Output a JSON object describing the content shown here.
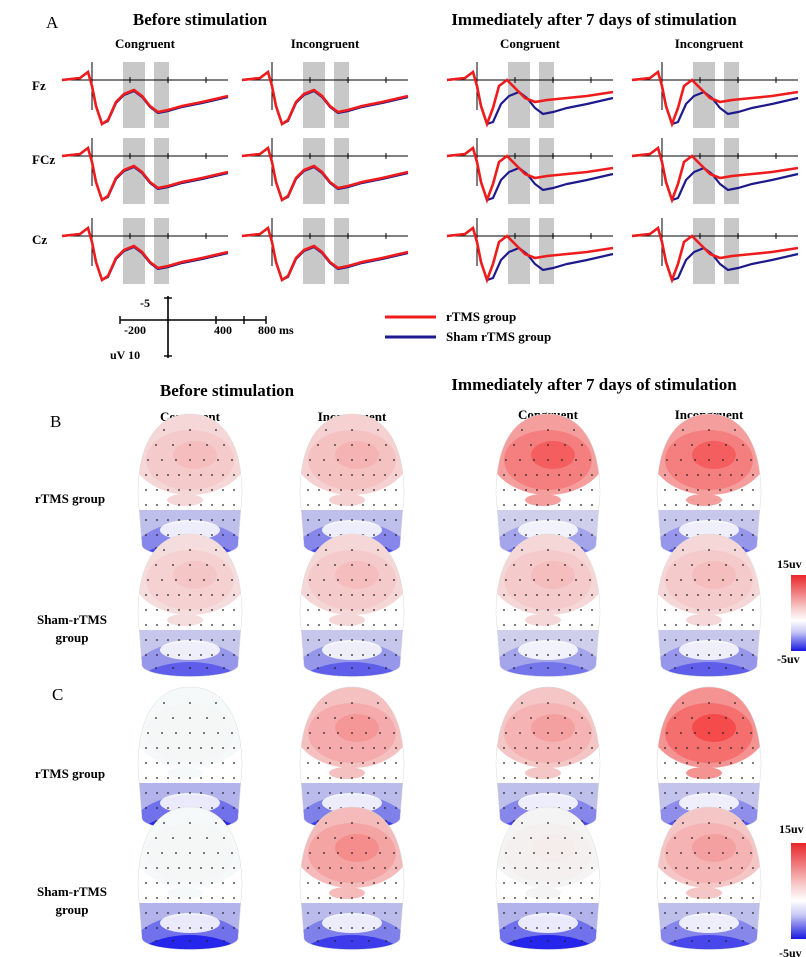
{
  "panel_a": {
    "letter": "A",
    "before_title": "Before stimulation",
    "after_title": "Immediately after 7 days of stimulation",
    "conditions": [
      "Congruent",
      "Incongruent"
    ],
    "electrodes": [
      "Fz",
      "FCz",
      "Cz"
    ],
    "scale": {
      "y_tick": "-5",
      "x_start": "-200",
      "x_mid": "400",
      "x_end": "800 ms",
      "y_unit": "uV 10"
    },
    "legend": {
      "rtms": "rTMS group",
      "sham": "Sham rTMS group"
    },
    "colors": {
      "rtms": "#ee1c1c",
      "sham": "#1e1a8c",
      "window": "#c8c8c8"
    }
  },
  "panel_b": {
    "letter": "B",
    "before_title": "Before stimulation",
    "after_title": "Immediately after 7 days of stimulation",
    "conditions": [
      "Congruent",
      "Incongruent",
      "Congruent",
      "Incongruent"
    ],
    "row_labels": [
      [
        "rTMS group"
      ],
      [
        "Sham-rTMS",
        "group"
      ]
    ],
    "colorbar": {
      "max": "15uv",
      "min": "-5uv"
    }
  },
  "panel_c": {
    "letter": "C",
    "row_labels": [
      [
        "rTMS group"
      ],
      [
        "Sham-rTMS",
        "group"
      ]
    ],
    "colorbar": {
      "max": "15uv",
      "min": "-5uv"
    }
  },
  "colormap": {
    "positive": "#e8252a",
    "zero": "#ffffff",
    "negative": "#1717e0"
  }
}
